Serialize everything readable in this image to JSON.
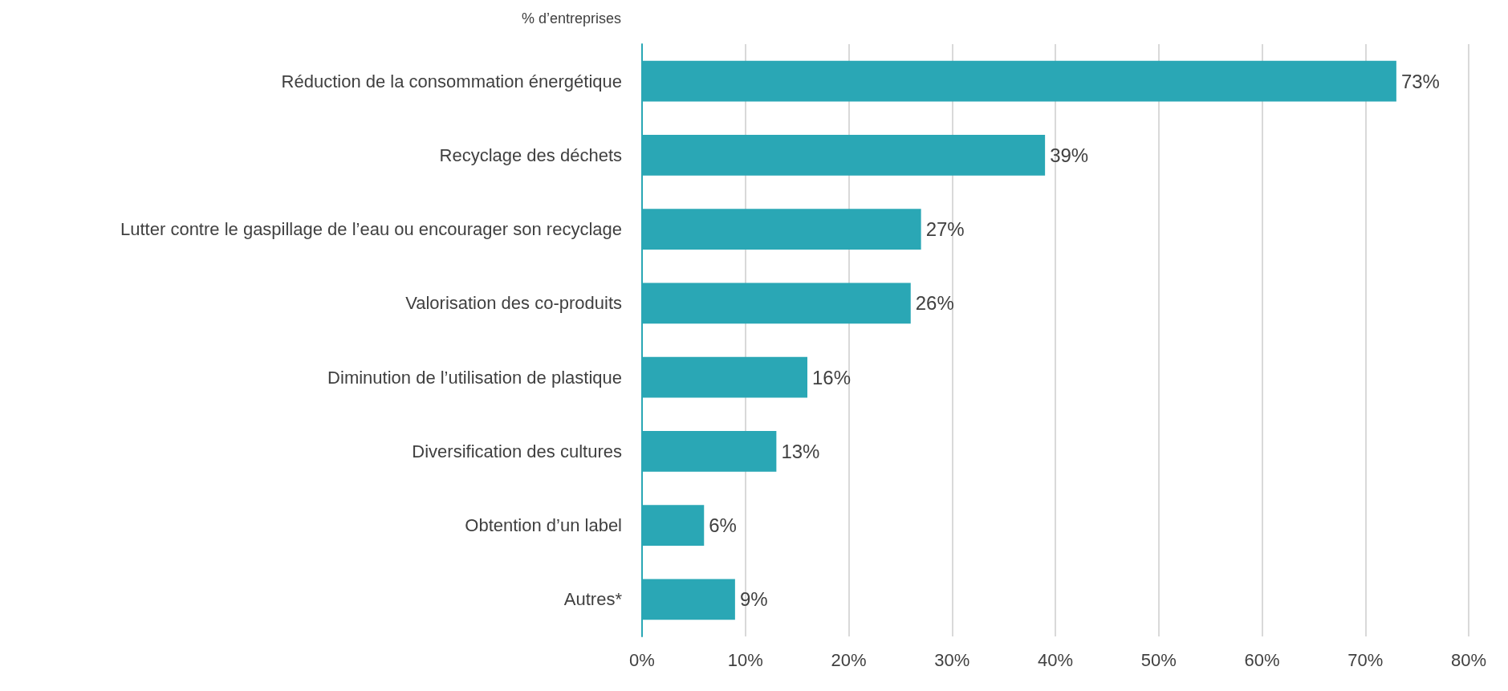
{
  "chart_data": {
    "type": "bar",
    "orientation": "horizontal",
    "xlabel": "% d’entreprises",
    "categories": [
      "Réduction de la consommation énergétique",
      "Recyclage des déchets",
      "Lutter contre le gaspillage de l’eau ou encourager son recyclage",
      "Valorisation des co-produits",
      "Diminution de l’utilisation de plastique",
      "Diversification des cultures",
      "Obtention d’un label",
      "Autres*"
    ],
    "values": [
      73,
      39,
      27,
      26,
      16,
      13,
      6,
      9
    ],
    "value_labels": [
      "73%",
      "39%",
      "27%",
      "26%",
      "16%",
      "13%",
      "6%",
      "9%"
    ],
    "color": "#2aa7b5",
    "xlim": [
      0,
      80
    ],
    "xticks": [
      {
        "value": 0,
        "label": "0%"
      },
      {
        "value": 10,
        "label": "10%"
      },
      {
        "value": 20,
        "label": "20%"
      },
      {
        "value": 30,
        "label": "30%"
      },
      {
        "value": 40,
        "label": "40%"
      },
      {
        "value": 50,
        "label": "50%"
      },
      {
        "value": 60,
        "label": "60%"
      },
      {
        "value": 70,
        "label": "70%"
      },
      {
        "value": 80,
        "label": "80%"
      }
    ],
    "grid": "x"
  }
}
